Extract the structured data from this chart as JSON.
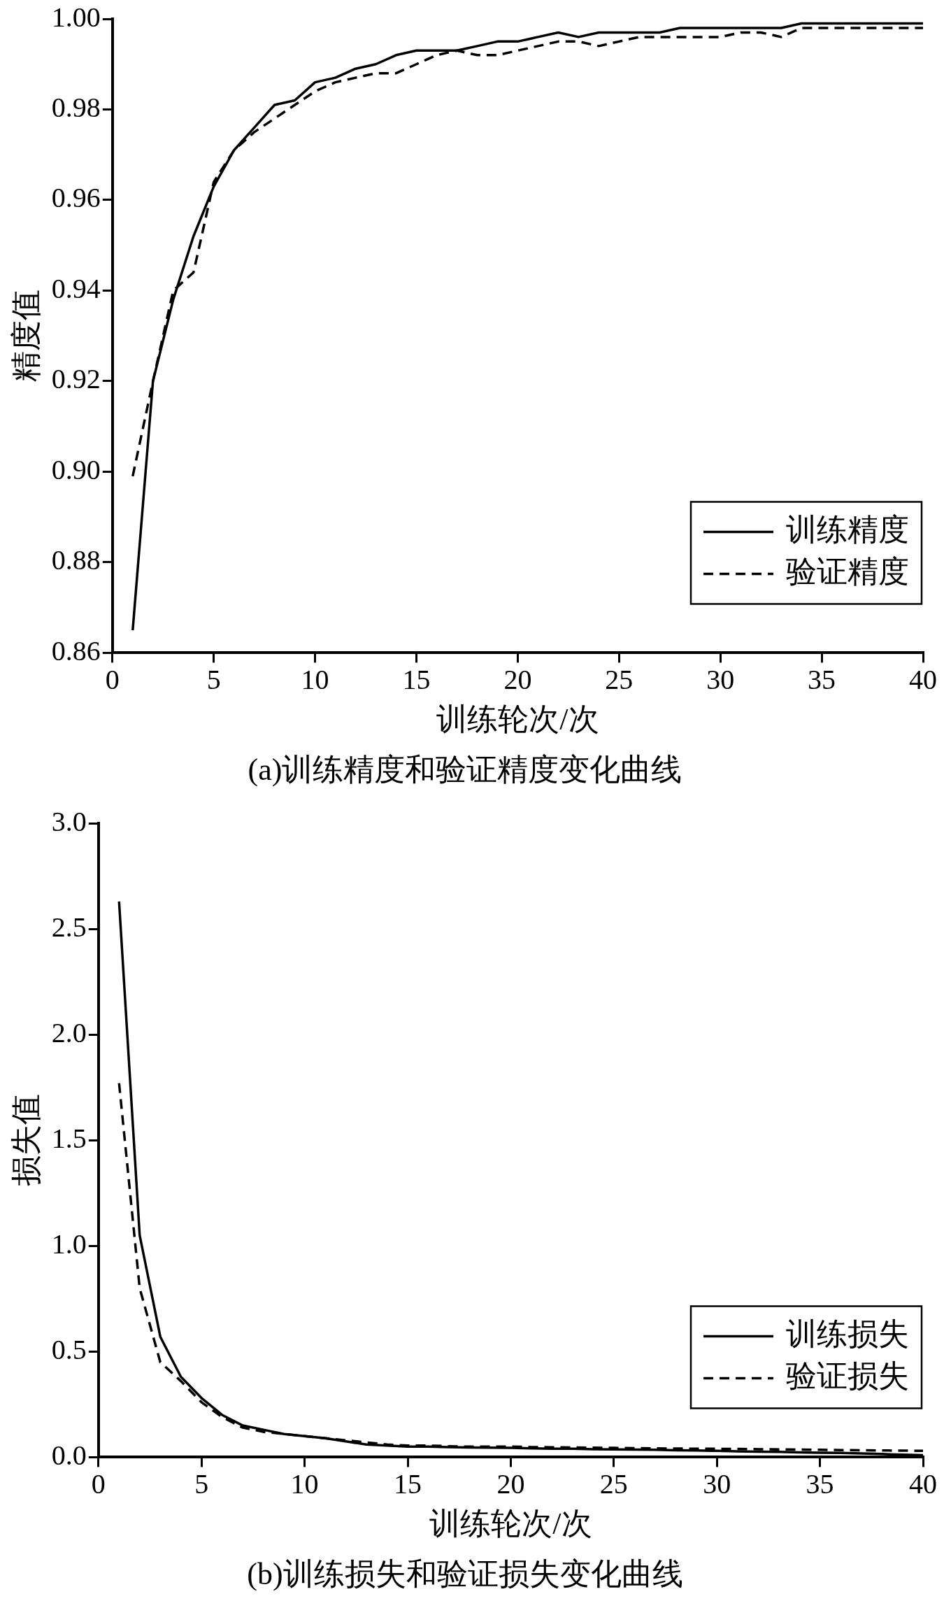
{
  "chart_data": [
    {
      "type": "line",
      "title": "(a)训练精度和验证精度变化曲线",
      "xlabel": "训练轮次/次",
      "ylabel": "精度值",
      "x": [
        1,
        2,
        3,
        4,
        5,
        6,
        7,
        8,
        9,
        10,
        11,
        12,
        13,
        14,
        15,
        16,
        17,
        18,
        19,
        20,
        21,
        22,
        23,
        24,
        25,
        26,
        27,
        28,
        29,
        30,
        31,
        32,
        33,
        34,
        35,
        36,
        37,
        38,
        39,
        40
      ],
      "series": [
        {
          "name": "训练精度",
          "color": "#000000",
          "line_style": "solid",
          "values": [
            0.865,
            0.92,
            0.938,
            0.952,
            0.963,
            0.971,
            0.976,
            0.981,
            0.982,
            0.986,
            0.987,
            0.989,
            0.99,
            0.992,
            0.993,
            0.993,
            0.993,
            0.994,
            0.995,
            0.995,
            0.996,
            0.997,
            0.996,
            0.997,
            0.997,
            0.997,
            0.997,
            0.998,
            0.998,
            0.998,
            0.998,
            0.998,
            0.998,
            0.999,
            0.999,
            0.999,
            0.999,
            0.999,
            0.999,
            0.999
          ]
        },
        {
          "name": "验证精度",
          "color": "#000000",
          "line_style": "dashed",
          "values": [
            0.899,
            0.92,
            0.94,
            0.944,
            0.964,
            0.971,
            0.975,
            0.978,
            0.981,
            0.984,
            0.986,
            0.987,
            0.988,
            0.988,
            0.99,
            0.992,
            0.993,
            0.992,
            0.992,
            0.993,
            0.994,
            0.995,
            0.995,
            0.994,
            0.995,
            0.996,
            0.996,
            0.996,
            0.996,
            0.996,
            0.997,
            0.997,
            0.996,
            0.998,
            0.998,
            0.998,
            0.998,
            0.998,
            0.998,
            0.998
          ]
        }
      ],
      "xlim": [
        0,
        40
      ],
      "xticks": [
        0,
        5,
        10,
        15,
        20,
        25,
        30,
        35,
        40
      ],
      "ylim": [
        0.86,
        1.0
      ],
      "yticks": [
        {
          "value": 0.86,
          "label": "0.86"
        },
        {
          "value": 0.88,
          "label": "0.88"
        },
        {
          "value": 0.9,
          "label": "0.90"
        },
        {
          "value": 0.92,
          "label": "0.92"
        },
        {
          "value": 0.94,
          "label": "0.94"
        },
        {
          "value": 0.96,
          "label": "0.96"
        },
        {
          "value": 0.98,
          "label": "0.98"
        },
        {
          "value": 1.0,
          "label": "1.00"
        }
      ],
      "grid": false,
      "legend": "bottom right",
      "marker": "none"
    },
    {
      "type": "line",
      "title": "(b)训练损失和验证损失变化曲线",
      "xlabel": "训练轮次/次",
      "ylabel": "损失值",
      "x": [
        1,
        2,
        3,
        4,
        5,
        6,
        7,
        8,
        9,
        10,
        11,
        12,
        13,
        14,
        15,
        16,
        17,
        18,
        19,
        20,
        21,
        22,
        23,
        24,
        25,
        26,
        27,
        28,
        29,
        30,
        31,
        32,
        33,
        34,
        35,
        36,
        37,
        38,
        39,
        40
      ],
      "series": [
        {
          "name": "训练损失",
          "color": "#000000",
          "line_style": "solid",
          "values": [
            2.63,
            1.05,
            0.57,
            0.38,
            0.28,
            0.2,
            0.15,
            0.13,
            0.11,
            0.1,
            0.09,
            0.075,
            0.06,
            0.055,
            0.05,
            0.05,
            0.048,
            0.046,
            0.045,
            0.044,
            0.042,
            0.04,
            0.04,
            0.038,
            0.037,
            0.036,
            0.035,
            0.033,
            0.032,
            0.03,
            0.028,
            0.026,
            0.025,
            0.023,
            0.021,
            0.02,
            0.018,
            0.015,
            0.012,
            0.01
          ]
        },
        {
          "name": "验证损失",
          "color": "#000000",
          "line_style": "dashed",
          "values": [
            1.77,
            0.8,
            0.45,
            0.36,
            0.26,
            0.19,
            0.14,
            0.12,
            0.11,
            0.1,
            0.09,
            0.08,
            0.07,
            0.06,
            0.055,
            0.055,
            0.052,
            0.05,
            0.05,
            0.05,
            0.048,
            0.047,
            0.046,
            0.045,
            0.044,
            0.043,
            0.042,
            0.041,
            0.04,
            0.04,
            0.039,
            0.038,
            0.037,
            0.036,
            0.035,
            0.034,
            0.033,
            0.032,
            0.031,
            0.03
          ]
        }
      ],
      "xlim": [
        0,
        40
      ],
      "xticks": [
        0,
        5,
        10,
        15,
        20,
        25,
        30,
        35,
        40
      ],
      "ylim": [
        0,
        3
      ],
      "yticks": [
        {
          "value": 0,
          "label": "0.0"
        },
        {
          "value": 0.5,
          "label": "0.5"
        },
        {
          "value": 1,
          "label": "1.0"
        },
        {
          "value": 1.5,
          "label": "1.5"
        },
        {
          "value": 2,
          "label": "2.0"
        },
        {
          "value": 2.5,
          "label": "2.5"
        },
        {
          "value": 3,
          "label": "3.0"
        }
      ],
      "grid": false,
      "legend": "bottom right",
      "marker": "none"
    }
  ]
}
